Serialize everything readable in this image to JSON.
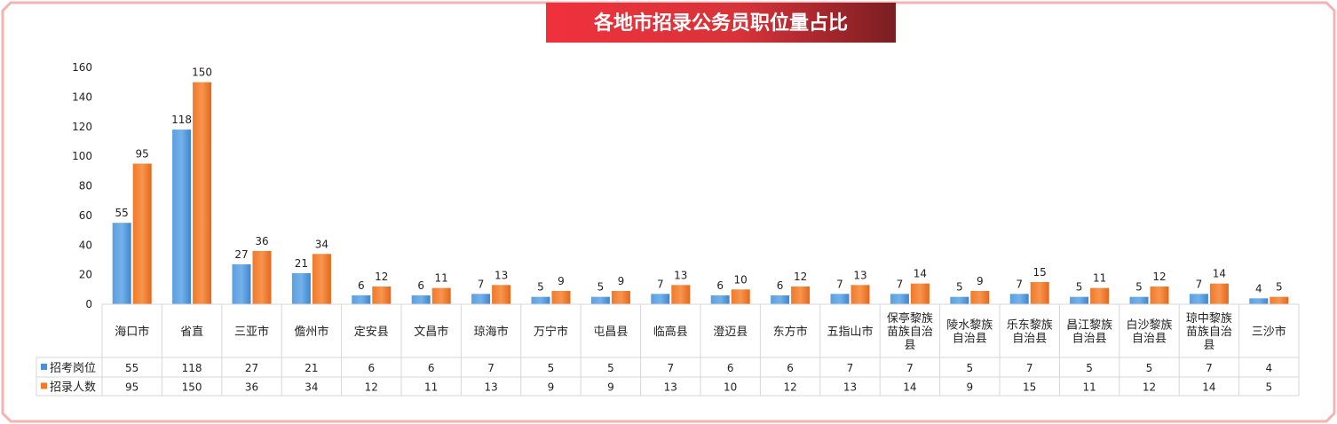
{
  "chart_data": {
    "type": "bar",
    "title": "各地市招录公务员职位量占比",
    "categories": [
      [
        "海口市"
      ],
      [
        "省直"
      ],
      [
        "三亚市"
      ],
      [
        "儋州市"
      ],
      [
        "定安县"
      ],
      [
        "文昌市"
      ],
      [
        "琼海市"
      ],
      [
        "万宁市"
      ],
      [
        "屯昌县"
      ],
      [
        "临高县"
      ],
      [
        "澄迈县"
      ],
      [
        "东方市"
      ],
      [
        "五指山市"
      ],
      [
        "保亭黎族",
        "苗族自治",
        "县"
      ],
      [
        "陵水黎族",
        "自治县"
      ],
      [
        "乐东黎族",
        "自治县"
      ],
      [
        "昌江黎族",
        "自治县"
      ],
      [
        "白沙黎族",
        "自治县"
      ],
      [
        "琼中黎族",
        "苗族自治",
        "县"
      ],
      [
        "三沙市"
      ]
    ],
    "series": [
      {
        "name": "招考岗位",
        "color": "#4a90d9",
        "values": [
          55,
          118,
          27,
          21,
          6,
          6,
          7,
          5,
          5,
          7,
          6,
          6,
          7,
          7,
          5,
          7,
          5,
          5,
          7,
          4
        ]
      },
      {
        "name": "招录人数",
        "color": "#f07a2a",
        "values": [
          95,
          150,
          36,
          34,
          12,
          11,
          13,
          9,
          9,
          13,
          10,
          12,
          13,
          14,
          9,
          15,
          11,
          12,
          14,
          5
        ]
      }
    ],
    "ylim": [
      0,
      160
    ],
    "yticks": [
      0,
      20,
      40,
      60,
      80,
      100,
      120,
      140,
      160
    ],
    "grid": false,
    "data_table": true,
    "legend": "data-table"
  }
}
